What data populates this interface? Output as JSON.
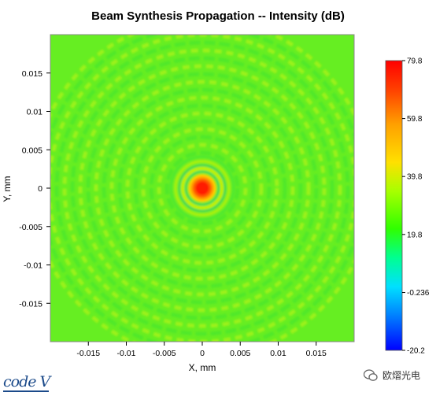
{
  "chart_data": {
    "type": "heatmap",
    "title": "Beam Synthesis Propagation -- Intensity (dB)",
    "xlabel": "X, mm",
    "ylabel": "Y, mm",
    "xlim": [
      -0.02,
      0.02
    ],
    "ylim": [
      -0.02,
      0.02
    ],
    "x_ticks": [
      -0.015,
      -0.01,
      -0.005,
      0,
      0.005,
      0.01,
      0.015
    ],
    "x_tick_labels": [
      "-0.015",
      "-0.01",
      "-0.005",
      "0",
      "0.005",
      "0.01",
      "0.015"
    ],
    "y_ticks": [
      0.015,
      0.01,
      0.005,
      0,
      -0.005,
      -0.01,
      -0.015
    ],
    "y_tick_labels": [
      "0.015",
      "0.01",
      "0.005",
      "0",
      "-0.005",
      "-0.01",
      "-0.015"
    ],
    "colorbar": {
      "min": -20.2,
      "max": 79.8,
      "tick_values": [
        79.8,
        59.8,
        39.8,
        19.8,
        -0.236,
        -20.2
      ],
      "tick_labels": [
        "79.8",
        "59.8",
        "39.8",
        "19.8",
        "-0.236",
        "-20.2"
      ],
      "colors": [
        "#0000ff",
        "#00a0ff",
        "#00ffd0",
        "#00ff40",
        "#60ff00",
        "#c8ff00",
        "#ffe000",
        "#ff8c00",
        "#ff3000",
        "#ff0000"
      ]
    },
    "description_pattern": "radially symmetric Airy-like rings centered at origin",
    "peak_value": 79.8,
    "background_level": 40
  },
  "footer": {
    "logo_text": "code V",
    "watermark_text": "欧熠光电"
  }
}
